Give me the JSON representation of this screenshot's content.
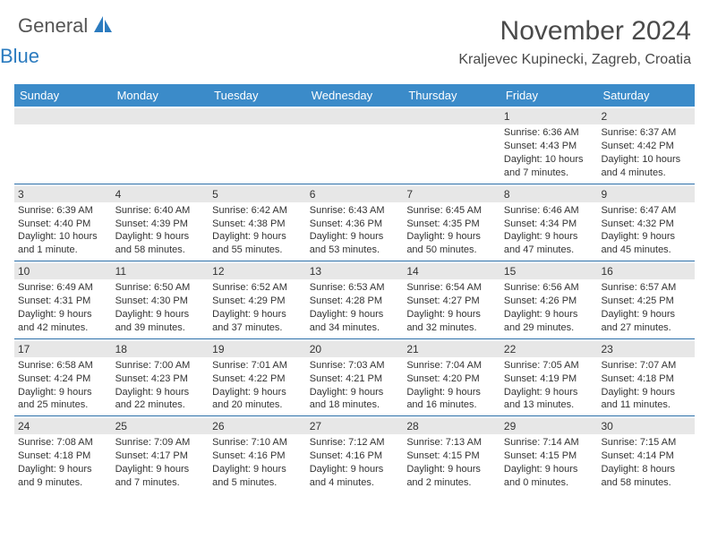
{
  "logo": {
    "text1": "General",
    "text2": "Blue"
  },
  "title": "November 2024",
  "location": "Kraljevec Kupinecki, Zagreb, Croatia",
  "colors": {
    "header_bg": "#3b8bc9",
    "header_text": "#ffffff",
    "row_border": "#2b6fa8",
    "daynum_bg": "#e7e7e7",
    "logo_blue": "#2b7bbf",
    "text": "#333333"
  },
  "columns": [
    "Sunday",
    "Monday",
    "Tuesday",
    "Wednesday",
    "Thursday",
    "Friday",
    "Saturday"
  ],
  "weeks": [
    [
      {
        "day": "",
        "sunrise": "",
        "sunset": "",
        "daylight": ""
      },
      {
        "day": "",
        "sunrise": "",
        "sunset": "",
        "daylight": ""
      },
      {
        "day": "",
        "sunrise": "",
        "sunset": "",
        "daylight": ""
      },
      {
        "day": "",
        "sunrise": "",
        "sunset": "",
        "daylight": ""
      },
      {
        "day": "",
        "sunrise": "",
        "sunset": "",
        "daylight": ""
      },
      {
        "day": "1",
        "sunrise": "Sunrise: 6:36 AM",
        "sunset": "Sunset: 4:43 PM",
        "daylight": "Daylight: 10 hours and 7 minutes."
      },
      {
        "day": "2",
        "sunrise": "Sunrise: 6:37 AM",
        "sunset": "Sunset: 4:42 PM",
        "daylight": "Daylight: 10 hours and 4 minutes."
      }
    ],
    [
      {
        "day": "3",
        "sunrise": "Sunrise: 6:39 AM",
        "sunset": "Sunset: 4:40 PM",
        "daylight": "Daylight: 10 hours and 1 minute."
      },
      {
        "day": "4",
        "sunrise": "Sunrise: 6:40 AM",
        "sunset": "Sunset: 4:39 PM",
        "daylight": "Daylight: 9 hours and 58 minutes."
      },
      {
        "day": "5",
        "sunrise": "Sunrise: 6:42 AM",
        "sunset": "Sunset: 4:38 PM",
        "daylight": "Daylight: 9 hours and 55 minutes."
      },
      {
        "day": "6",
        "sunrise": "Sunrise: 6:43 AM",
        "sunset": "Sunset: 4:36 PM",
        "daylight": "Daylight: 9 hours and 53 minutes."
      },
      {
        "day": "7",
        "sunrise": "Sunrise: 6:45 AM",
        "sunset": "Sunset: 4:35 PM",
        "daylight": "Daylight: 9 hours and 50 minutes."
      },
      {
        "day": "8",
        "sunrise": "Sunrise: 6:46 AM",
        "sunset": "Sunset: 4:34 PM",
        "daylight": "Daylight: 9 hours and 47 minutes."
      },
      {
        "day": "9",
        "sunrise": "Sunrise: 6:47 AM",
        "sunset": "Sunset: 4:32 PM",
        "daylight": "Daylight: 9 hours and 45 minutes."
      }
    ],
    [
      {
        "day": "10",
        "sunrise": "Sunrise: 6:49 AM",
        "sunset": "Sunset: 4:31 PM",
        "daylight": "Daylight: 9 hours and 42 minutes."
      },
      {
        "day": "11",
        "sunrise": "Sunrise: 6:50 AM",
        "sunset": "Sunset: 4:30 PM",
        "daylight": "Daylight: 9 hours and 39 minutes."
      },
      {
        "day": "12",
        "sunrise": "Sunrise: 6:52 AM",
        "sunset": "Sunset: 4:29 PM",
        "daylight": "Daylight: 9 hours and 37 minutes."
      },
      {
        "day": "13",
        "sunrise": "Sunrise: 6:53 AM",
        "sunset": "Sunset: 4:28 PM",
        "daylight": "Daylight: 9 hours and 34 minutes."
      },
      {
        "day": "14",
        "sunrise": "Sunrise: 6:54 AM",
        "sunset": "Sunset: 4:27 PM",
        "daylight": "Daylight: 9 hours and 32 minutes."
      },
      {
        "day": "15",
        "sunrise": "Sunrise: 6:56 AM",
        "sunset": "Sunset: 4:26 PM",
        "daylight": "Daylight: 9 hours and 29 minutes."
      },
      {
        "day": "16",
        "sunrise": "Sunrise: 6:57 AM",
        "sunset": "Sunset: 4:25 PM",
        "daylight": "Daylight: 9 hours and 27 minutes."
      }
    ],
    [
      {
        "day": "17",
        "sunrise": "Sunrise: 6:58 AM",
        "sunset": "Sunset: 4:24 PM",
        "daylight": "Daylight: 9 hours and 25 minutes."
      },
      {
        "day": "18",
        "sunrise": "Sunrise: 7:00 AM",
        "sunset": "Sunset: 4:23 PM",
        "daylight": "Daylight: 9 hours and 22 minutes."
      },
      {
        "day": "19",
        "sunrise": "Sunrise: 7:01 AM",
        "sunset": "Sunset: 4:22 PM",
        "daylight": "Daylight: 9 hours and 20 minutes."
      },
      {
        "day": "20",
        "sunrise": "Sunrise: 7:03 AM",
        "sunset": "Sunset: 4:21 PM",
        "daylight": "Daylight: 9 hours and 18 minutes."
      },
      {
        "day": "21",
        "sunrise": "Sunrise: 7:04 AM",
        "sunset": "Sunset: 4:20 PM",
        "daylight": "Daylight: 9 hours and 16 minutes."
      },
      {
        "day": "22",
        "sunrise": "Sunrise: 7:05 AM",
        "sunset": "Sunset: 4:19 PM",
        "daylight": "Daylight: 9 hours and 13 minutes."
      },
      {
        "day": "23",
        "sunrise": "Sunrise: 7:07 AM",
        "sunset": "Sunset: 4:18 PM",
        "daylight": "Daylight: 9 hours and 11 minutes."
      }
    ],
    [
      {
        "day": "24",
        "sunrise": "Sunrise: 7:08 AM",
        "sunset": "Sunset: 4:18 PM",
        "daylight": "Daylight: 9 hours and 9 minutes."
      },
      {
        "day": "25",
        "sunrise": "Sunrise: 7:09 AM",
        "sunset": "Sunset: 4:17 PM",
        "daylight": "Daylight: 9 hours and 7 minutes."
      },
      {
        "day": "26",
        "sunrise": "Sunrise: 7:10 AM",
        "sunset": "Sunset: 4:16 PM",
        "daylight": "Daylight: 9 hours and 5 minutes."
      },
      {
        "day": "27",
        "sunrise": "Sunrise: 7:12 AM",
        "sunset": "Sunset: 4:16 PM",
        "daylight": "Daylight: 9 hours and 4 minutes."
      },
      {
        "day": "28",
        "sunrise": "Sunrise: 7:13 AM",
        "sunset": "Sunset: 4:15 PM",
        "daylight": "Daylight: 9 hours and 2 minutes."
      },
      {
        "day": "29",
        "sunrise": "Sunrise: 7:14 AM",
        "sunset": "Sunset: 4:15 PM",
        "daylight": "Daylight: 9 hours and 0 minutes."
      },
      {
        "day": "30",
        "sunrise": "Sunrise: 7:15 AM",
        "sunset": "Sunset: 4:14 PM",
        "daylight": "Daylight: 8 hours and 58 minutes."
      }
    ]
  ]
}
